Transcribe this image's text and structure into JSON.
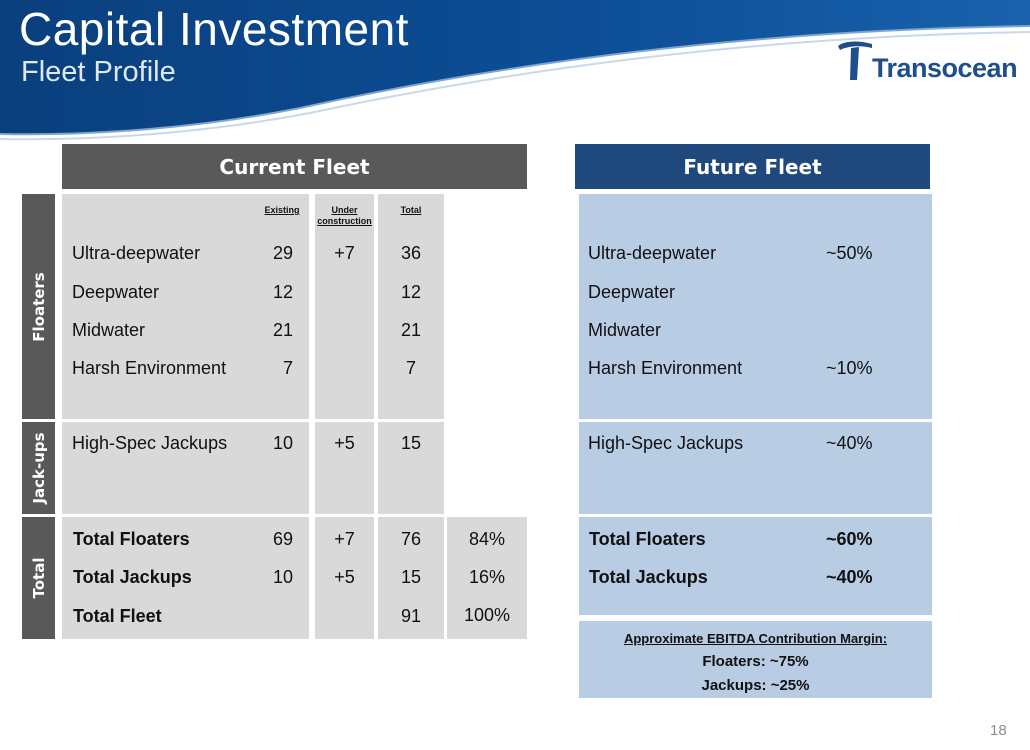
{
  "header": {
    "title": "Capital Investment",
    "subtitle": "Fleet Profile",
    "logo_text": "Transocean"
  },
  "current_fleet": {
    "title": "Current Fleet",
    "columns": {
      "existing": "Existing",
      "under_construction": "Under construction",
      "total": "Total"
    },
    "floaters": [
      {
        "label": "Ultra-deepwater",
        "existing": "29",
        "under": "+7",
        "total": "36"
      },
      {
        "label": "Deepwater",
        "existing": "12",
        "under": "",
        "total": "12"
      },
      {
        "label": "Midwater",
        "existing": "21",
        "under": "",
        "total": "21"
      },
      {
        "label": "Harsh Environment",
        "existing": "7",
        "under": "",
        "total": "7"
      }
    ],
    "jackups": [
      {
        "label": "High-Spec Jackups",
        "existing": "10",
        "under": "+5",
        "total": "15"
      }
    ],
    "totals": [
      {
        "label": "Total Floaters",
        "existing": "69",
        "under": "+7",
        "total": "76",
        "pct": "84%"
      },
      {
        "label": "Total Jackups",
        "existing": "10",
        "under": "+5",
        "total": "15",
        "pct": "16%"
      },
      {
        "label": "Total Fleet",
        "existing": "",
        "under": "",
        "total": "91",
        "pct": "100%"
      }
    ]
  },
  "future_fleet": {
    "title": "Future Fleet",
    "floaters": [
      {
        "label": "Ultra-deepwater",
        "value": "~50%"
      },
      {
        "label": "Deepwater",
        "value": ""
      },
      {
        "label": "Midwater",
        "value": ""
      },
      {
        "label": "Harsh Environment",
        "value": "~10%"
      }
    ],
    "jackups": [
      {
        "label": "High-Spec Jackups",
        "value": "~40%"
      }
    ],
    "totals": [
      {
        "label": "Total Floaters",
        "value": "~60%"
      },
      {
        "label": "Total Jackups",
        "value": "~40%"
      }
    ]
  },
  "ebitda": {
    "title": "Approximate EBITDA Contribution Margin:",
    "lines": [
      "Floaters: ~75%",
      "Jackups: ~25%"
    ]
  },
  "sections": {
    "floaters": "Floaters",
    "jackups": "Jack-ups",
    "total": "Total"
  },
  "page_number": "18",
  "colors": {
    "header_blue": "#0b4a8f",
    "current_header": "#595959",
    "future_header": "#1f497d",
    "gray_cell": "#d9d9d9",
    "blue_cell": "#b8cce4"
  }
}
